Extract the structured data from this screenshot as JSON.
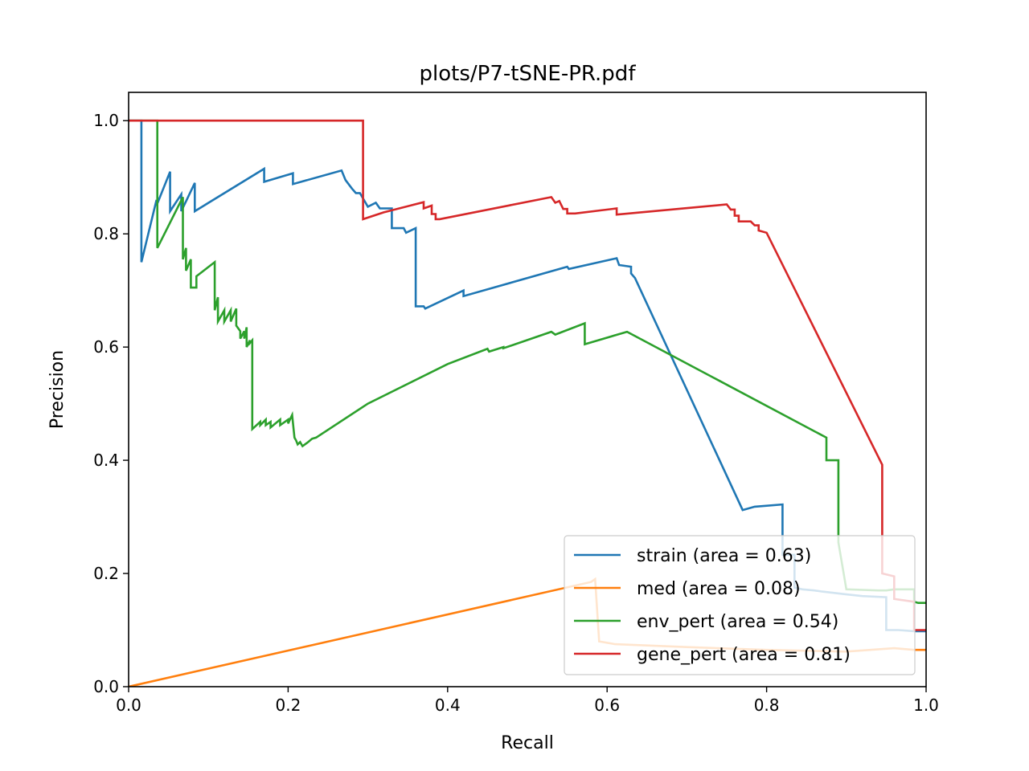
{
  "chart_data": {
    "type": "line",
    "title": "plots/P7-tSNE-PR.pdf",
    "xlabel": "Recall",
    "ylabel": "Precision",
    "xlim": [
      0.0,
      1.0
    ],
    "ylim": [
      0.0,
      1.05
    ],
    "xticks": [
      "0.0",
      "0.2",
      "0.4",
      "0.6",
      "0.8",
      "1.0"
    ],
    "yticks": [
      "0.0",
      "0.2",
      "0.4",
      "0.6",
      "0.8",
      "1.0"
    ],
    "grid": false,
    "legend_position": "lower right",
    "series": [
      {
        "name": "strain (area = 0.63)",
        "color": "#1f77b4",
        "points": [
          [
            0.0,
            1.0
          ],
          [
            0.016,
            1.0
          ],
          [
            0.016,
            0.75
          ],
          [
            0.035,
            0.86
          ],
          [
            0.035,
            0.85
          ],
          [
            0.052,
            0.91
          ],
          [
            0.052,
            0.84
          ],
          [
            0.066,
            0.87
          ],
          [
            0.066,
            0.84
          ],
          [
            0.083,
            0.89
          ],
          [
            0.083,
            0.84
          ],
          [
            0.17,
            0.915
          ],
          [
            0.17,
            0.892
          ],
          [
            0.206,
            0.907
          ],
          [
            0.206,
            0.888
          ],
          [
            0.267,
            0.912
          ],
          [
            0.272,
            0.895
          ],
          [
            0.28,
            0.88
          ],
          [
            0.285,
            0.872
          ],
          [
            0.29,
            0.872
          ],
          [
            0.3,
            0.848
          ],
          [
            0.31,
            0.855
          ],
          [
            0.315,
            0.845
          ],
          [
            0.33,
            0.845
          ],
          [
            0.33,
            0.81
          ],
          [
            0.345,
            0.81
          ],
          [
            0.348,
            0.802
          ],
          [
            0.36,
            0.81
          ],
          [
            0.36,
            0.81
          ],
          [
            0.36,
            0.672
          ],
          [
            0.37,
            0.672
          ],
          [
            0.372,
            0.668
          ],
          [
            0.42,
            0.7
          ],
          [
            0.42,
            0.69
          ],
          [
            0.55,
            0.742
          ],
          [
            0.552,
            0.738
          ],
          [
            0.612,
            0.757
          ],
          [
            0.615,
            0.745
          ],
          [
            0.63,
            0.742
          ],
          [
            0.63,
            0.73
          ],
          [
            0.635,
            0.722
          ],
          [
            0.77,
            0.312
          ],
          [
            0.785,
            0.318
          ],
          [
            0.82,
            0.322
          ],
          [
            0.82,
            0.233
          ],
          [
            0.835,
            0.233
          ],
          [
            0.835,
            0.175
          ],
          [
            0.845,
            0.172
          ],
          [
            0.86,
            0.17
          ],
          [
            0.87,
            0.168
          ],
          [
            0.9,
            0.163
          ],
          [
            0.92,
            0.16
          ],
          [
            0.95,
            0.158
          ],
          [
            0.95,
            0.1
          ],
          [
            0.965,
            0.1
          ],
          [
            0.985,
            0.098
          ],
          [
            1.0,
            0.098
          ]
        ]
      },
      {
        "name": "med (area = 0.08)",
        "color": "#ff7f0e",
        "points": [
          [
            0.0,
            0.0
          ],
          [
            0.58,
            0.185
          ],
          [
            0.585,
            0.19
          ],
          [
            0.59,
            0.08
          ],
          [
            0.61,
            0.075
          ],
          [
            0.7,
            0.07
          ],
          [
            0.8,
            0.065
          ],
          [
            0.9,
            0.062
          ],
          [
            0.96,
            0.068
          ],
          [
            0.985,
            0.065
          ],
          [
            1.0,
            0.065
          ]
        ]
      },
      {
        "name": "env_pert (area = 0.54)",
        "color": "#2ca02c",
        "points": [
          [
            0.0,
            1.0
          ],
          [
            0.036,
            1.0
          ],
          [
            0.036,
            0.775
          ],
          [
            0.068,
            0.865
          ],
          [
            0.068,
            0.755
          ],
          [
            0.072,
            0.775
          ],
          [
            0.072,
            0.735
          ],
          [
            0.078,
            0.755
          ],
          [
            0.078,
            0.705
          ],
          [
            0.085,
            0.705
          ],
          [
            0.085,
            0.725
          ],
          [
            0.108,
            0.75
          ],
          [
            0.108,
            0.665
          ],
          [
            0.112,
            0.688
          ],
          [
            0.112,
            0.645
          ],
          [
            0.12,
            0.665
          ],
          [
            0.12,
            0.645
          ],
          [
            0.128,
            0.665
          ],
          [
            0.128,
            0.645
          ],
          [
            0.135,
            0.668
          ],
          [
            0.135,
            0.638
          ],
          [
            0.14,
            0.628
          ],
          [
            0.14,
            0.615
          ],
          [
            0.145,
            0.628
          ],
          [
            0.145,
            0.615
          ],
          [
            0.148,
            0.635
          ],
          [
            0.148,
            0.6
          ],
          [
            0.152,
            0.612
          ],
          [
            0.152,
            0.607
          ],
          [
            0.155,
            0.612
          ],
          [
            0.155,
            0.455
          ],
          [
            0.165,
            0.468
          ],
          [
            0.165,
            0.462
          ],
          [
            0.172,
            0.472
          ],
          [
            0.172,
            0.462
          ],
          [
            0.178,
            0.468
          ],
          [
            0.178,
            0.458
          ],
          [
            0.19,
            0.472
          ],
          [
            0.19,
            0.462
          ],
          [
            0.2,
            0.472
          ],
          [
            0.2,
            0.465
          ],
          [
            0.205,
            0.48
          ],
          [
            0.208,
            0.44
          ],
          [
            0.21,
            0.435
          ],
          [
            0.212,
            0.428
          ],
          [
            0.215,
            0.432
          ],
          [
            0.218,
            0.425
          ],
          [
            0.225,
            0.432
          ],
          [
            0.23,
            0.438
          ],
          [
            0.235,
            0.44
          ],
          [
            0.3,
            0.5
          ],
          [
            0.4,
            0.57
          ],
          [
            0.45,
            0.597
          ],
          [
            0.452,
            0.592
          ],
          [
            0.47,
            0.6
          ],
          [
            0.47,
            0.598
          ],
          [
            0.53,
            0.627
          ],
          [
            0.535,
            0.622
          ],
          [
            0.572,
            0.642
          ],
          [
            0.572,
            0.605
          ],
          [
            0.625,
            0.627
          ],
          [
            0.875,
            0.44
          ],
          [
            0.875,
            0.4
          ],
          [
            0.89,
            0.4
          ],
          [
            0.89,
            0.255
          ],
          [
            0.9,
            0.172
          ],
          [
            0.94,
            0.17
          ],
          [
            0.95,
            0.17
          ],
          [
            0.96,
            0.172
          ],
          [
            0.985,
            0.172
          ],
          [
            0.985,
            0.15
          ],
          [
            0.99,
            0.148
          ],
          [
            1.0,
            0.148
          ]
        ]
      },
      {
        "name": "gene_pert (area = 0.81)",
        "color": "#d62728",
        "points": [
          [
            0.0,
            1.0
          ],
          [
            0.294,
            1.0
          ],
          [
            0.294,
            0.826
          ],
          [
            0.32,
            0.838
          ],
          [
            0.37,
            0.856
          ],
          [
            0.37,
            0.845
          ],
          [
            0.38,
            0.85
          ],
          [
            0.38,
            0.835
          ],
          [
            0.385,
            0.835
          ],
          [
            0.385,
            0.826
          ],
          [
            0.39,
            0.826
          ],
          [
            0.53,
            0.865
          ],
          [
            0.535,
            0.855
          ],
          [
            0.54,
            0.858
          ],
          [
            0.545,
            0.844
          ],
          [
            0.55,
            0.844
          ],
          [
            0.55,
            0.836
          ],
          [
            0.56,
            0.836
          ],
          [
            0.612,
            0.845
          ],
          [
            0.612,
            0.834
          ],
          [
            0.75,
            0.852
          ],
          [
            0.755,
            0.843
          ],
          [
            0.76,
            0.843
          ],
          [
            0.76,
            0.832
          ],
          [
            0.765,
            0.832
          ],
          [
            0.765,
            0.822
          ],
          [
            0.78,
            0.822
          ],
          [
            0.785,
            0.815
          ],
          [
            0.79,
            0.815
          ],
          [
            0.79,
            0.806
          ],
          [
            0.8,
            0.802
          ],
          [
            0.945,
            0.392
          ],
          [
            0.945,
            0.2
          ],
          [
            0.96,
            0.195
          ],
          [
            0.96,
            0.155
          ],
          [
            0.985,
            0.15
          ],
          [
            0.985,
            0.1
          ],
          [
            1.0,
            0.1
          ]
        ]
      }
    ]
  }
}
